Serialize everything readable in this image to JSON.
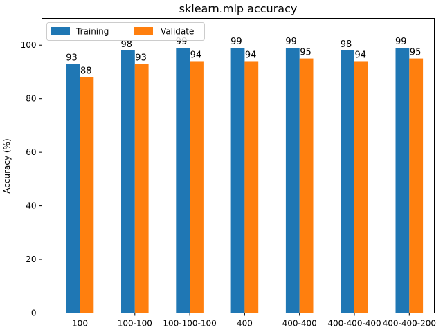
{
  "chart_data": {
    "type": "bar",
    "title": "sklearn.mlp accuracy",
    "xlabel": "",
    "ylabel": "Accuracy (%)",
    "ylim": [
      0,
      110
    ],
    "yticks": [
      0,
      20,
      40,
      60,
      80,
      100
    ],
    "categories": [
      "100",
      "100-100",
      "100-100-100",
      "400",
      "400-400",
      "400-400-400",
      "400-400-200"
    ],
    "series": [
      {
        "name": "Training",
        "color": "#1f77b4",
        "values": [
          93,
          98,
          99,
          99,
          99,
          98,
          99
        ]
      },
      {
        "name": "Validate",
        "color": "#ff7f0e",
        "values": [
          88,
          93,
          94,
          94,
          95,
          94,
          95
        ]
      }
    ],
    "legend_position": "top-left",
    "grid": false
  }
}
